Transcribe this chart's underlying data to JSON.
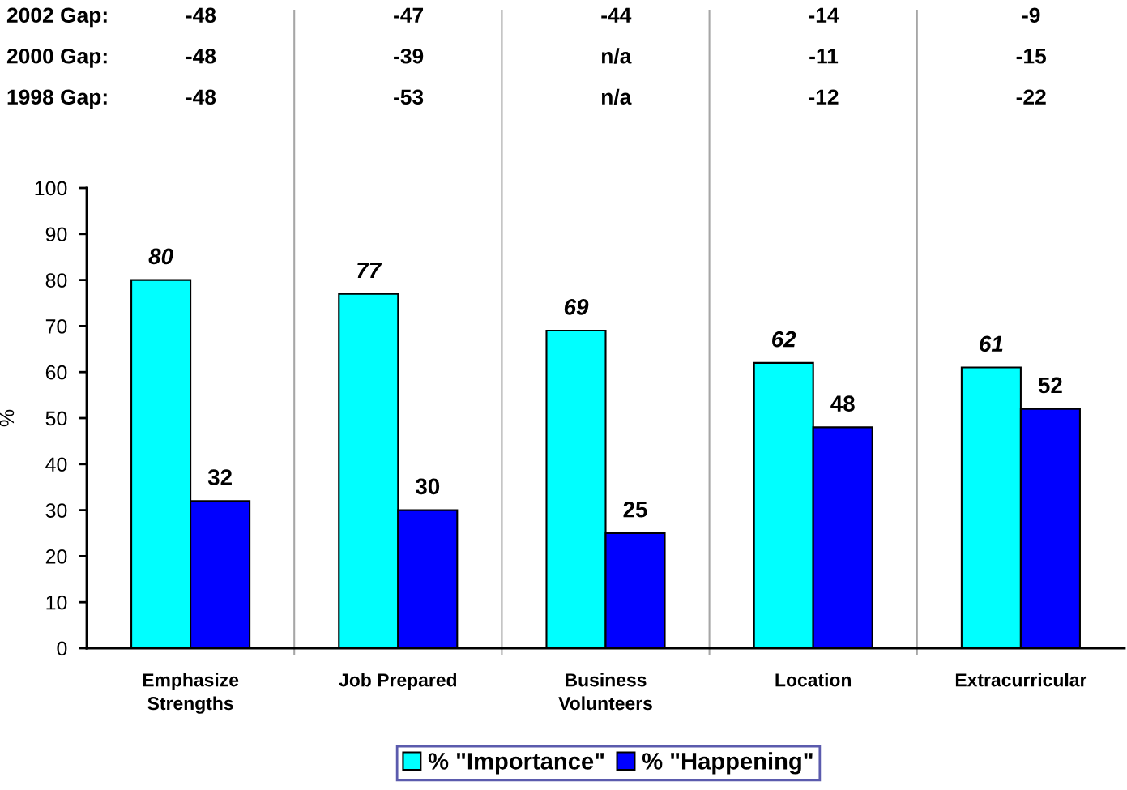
{
  "chart_data": {
    "type": "bar",
    "ylabel": "%",
    "categories": [
      "Emphasize\nStrengths",
      "Job Prepared",
      "Business\nVolunteers",
      "Location",
      "Extracurricular"
    ],
    "series": [
      {
        "name": "% \"Importance\"",
        "color": "#00ffff",
        "values": [
          80,
          77,
          69,
          62,
          61
        ]
      },
      {
        "name": "% \"Happening\"",
        "color": "#0000ff",
        "values": [
          32,
          30,
          25,
          48,
          52
        ]
      }
    ],
    "ylim": [
      0,
      100
    ],
    "yticks": [
      0,
      10,
      20,
      30,
      40,
      50,
      60,
      70,
      80,
      90,
      100
    ],
    "data_labels": true,
    "grid": "x",
    "legend": "bottom",
    "annotations": [
      "2002 Gap:",
      "-48",
      "-47",
      "-44",
      "-14",
      "-9",
      "2000 Gap:",
      "-48",
      "-39",
      "n/a",
      "-11",
      "-15",
      "1998 Gap:",
      "-48",
      "-53",
      "n/a",
      "-12",
      "-22"
    ]
  }
}
